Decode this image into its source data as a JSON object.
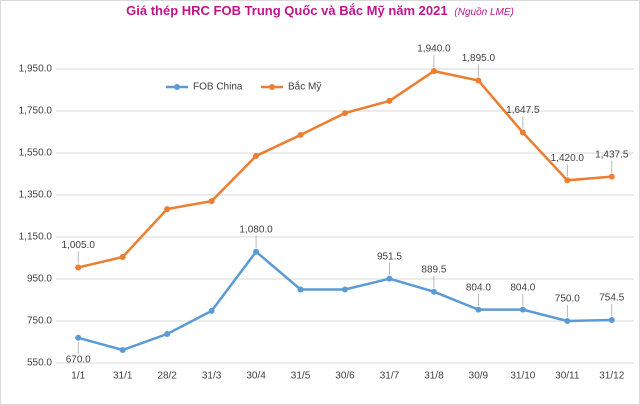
{
  "chart_data": {
    "type": "line",
    "title": "Giá thép HRC FOB Trung Quốc và Bắc Mỹ năm 2021",
    "subtitle": "(Nguồn LME)",
    "categories": [
      "1/1",
      "31/1",
      "28/2",
      "31/3",
      "30/4",
      "31/5",
      "30/6",
      "31/7",
      "31/8",
      "30/9",
      "31/10",
      "30/11",
      "31/12"
    ],
    "series": [
      {
        "name": "FOB China",
        "color": "#5b9bd5",
        "values": [
          670,
          612,
          688,
          798,
          1080,
          900,
          900,
          951.5,
          889.5,
          804,
          804,
          750,
          754.5
        ],
        "value_labels": [
          "670.0",
          null,
          null,
          null,
          "1,080.0",
          null,
          null,
          "951.5",
          "889.5",
          "804.0",
          "804.0",
          "750.0",
          "754.5"
        ]
      },
      {
        "name": "Bắc Mỹ",
        "color": "#ed7d31",
        "values": [
          1005,
          1055,
          1283,
          1321,
          1536,
          1636,
          1740,
          1798,
          1940,
          1895,
          1647.5,
          1420,
          1437.5
        ],
        "value_labels": [
          "1,005.0",
          null,
          null,
          null,
          null,
          null,
          null,
          null,
          "1,940.0",
          "1,895.0",
          "1,647.5",
          "1,420.0",
          "1,437.5"
        ]
      }
    ],
    "ylim": [
      550,
      2150
    ],
    "yticks": [
      {
        "value": 550,
        "label": "550.0"
      },
      {
        "value": 750,
        "label": "750.0"
      },
      {
        "value": 950,
        "label": "950.0"
      },
      {
        "value": 1150,
        "label": "1,150.0"
      },
      {
        "value": 1350,
        "label": "1,350.0"
      },
      {
        "value": 1550,
        "label": "1,550.0"
      },
      {
        "value": 1750,
        "label": "1,750.0"
      },
      {
        "value": 1950,
        "label": "1,950.0"
      }
    ],
    "grid": true,
    "legend": "top-left"
  }
}
